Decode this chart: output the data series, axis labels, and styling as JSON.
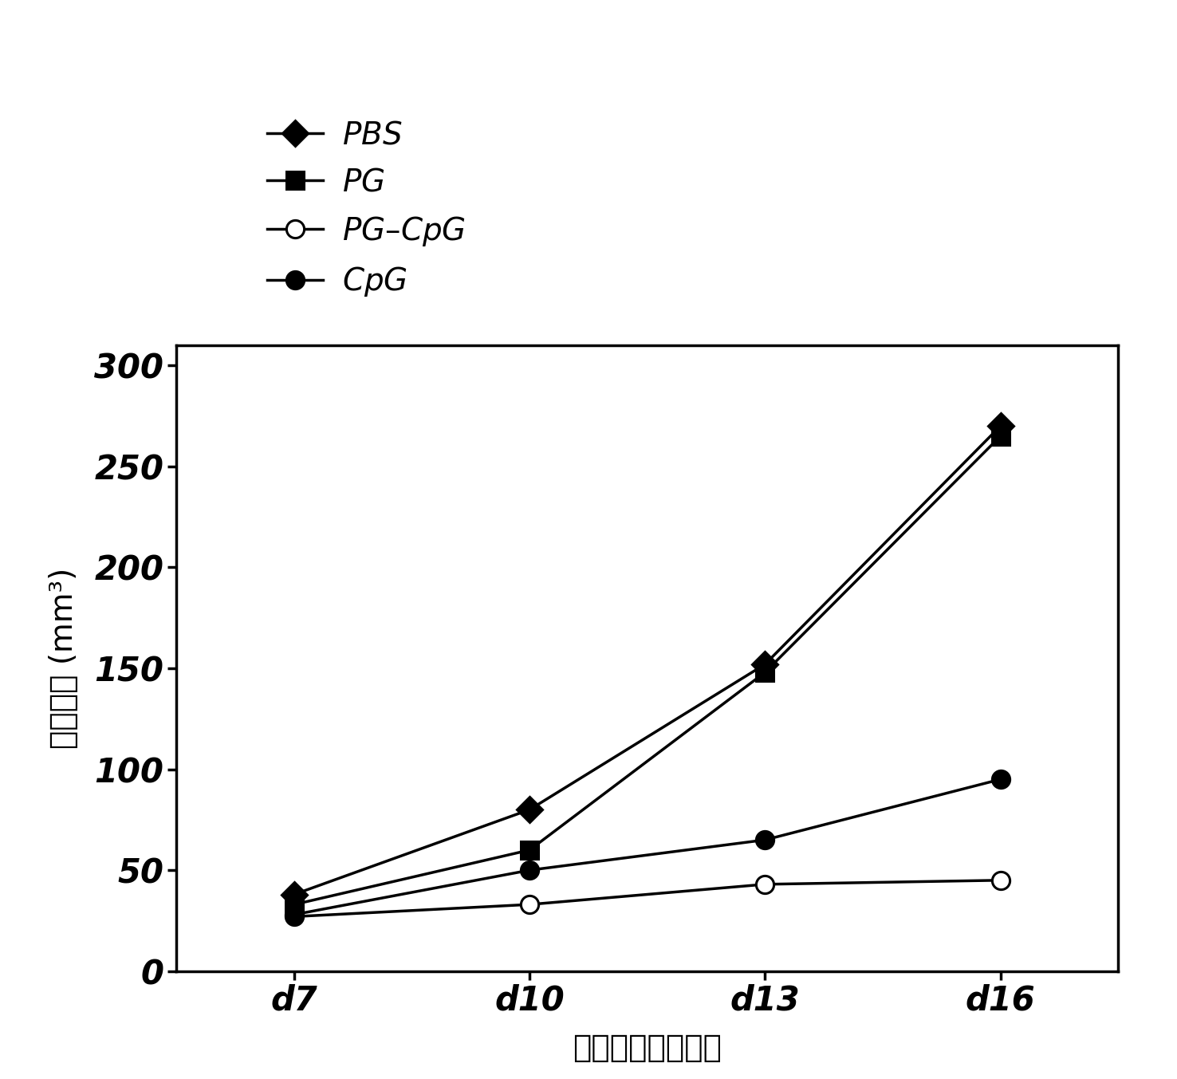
{
  "x_labels": [
    "d7",
    "d10",
    "d13",
    "d16"
  ],
  "x_values": [
    7,
    10,
    13,
    16
  ],
  "series": [
    {
      "label": "PBS",
      "values": [
        38,
        80,
        152,
        270
      ],
      "marker": "D",
      "marker_filled": true,
      "color": "#000000",
      "linestyle": "-",
      "markersize": 16
    },
    {
      "label": "PG",
      "values": [
        33,
        60,
        148,
        265
      ],
      "marker": "s",
      "marker_filled": true,
      "color": "#000000",
      "linestyle": "-",
      "markersize": 16
    },
    {
      "label": "PG-CpG",
      "values": [
        27,
        33,
        43,
        45
      ],
      "marker": "o",
      "marker_filled": false,
      "color": "#000000",
      "linestyle": "-",
      "markersize": 16
    },
    {
      "label": "CpG",
      "values": [
        28,
        50,
        65,
        95
      ],
      "marker": "o",
      "marker_filled": true,
      "color": "#000000",
      "linestyle": "-",
      "markersize": 16
    }
  ],
  "xlabel": "接种肿瘤后的天数",
  "ylabel_chinese": "肿瘤大小",
  "ylabel_unit": "(mm³)",
  "ylim": [
    0,
    310
  ],
  "yticks": [
    0,
    50,
    100,
    150,
    200,
    250,
    300
  ],
  "background_color": "#ffffff",
  "linewidth": 2.5,
  "tick_fontsize": 30,
  "label_fontsize": 28,
  "legend_fontsize": 28
}
